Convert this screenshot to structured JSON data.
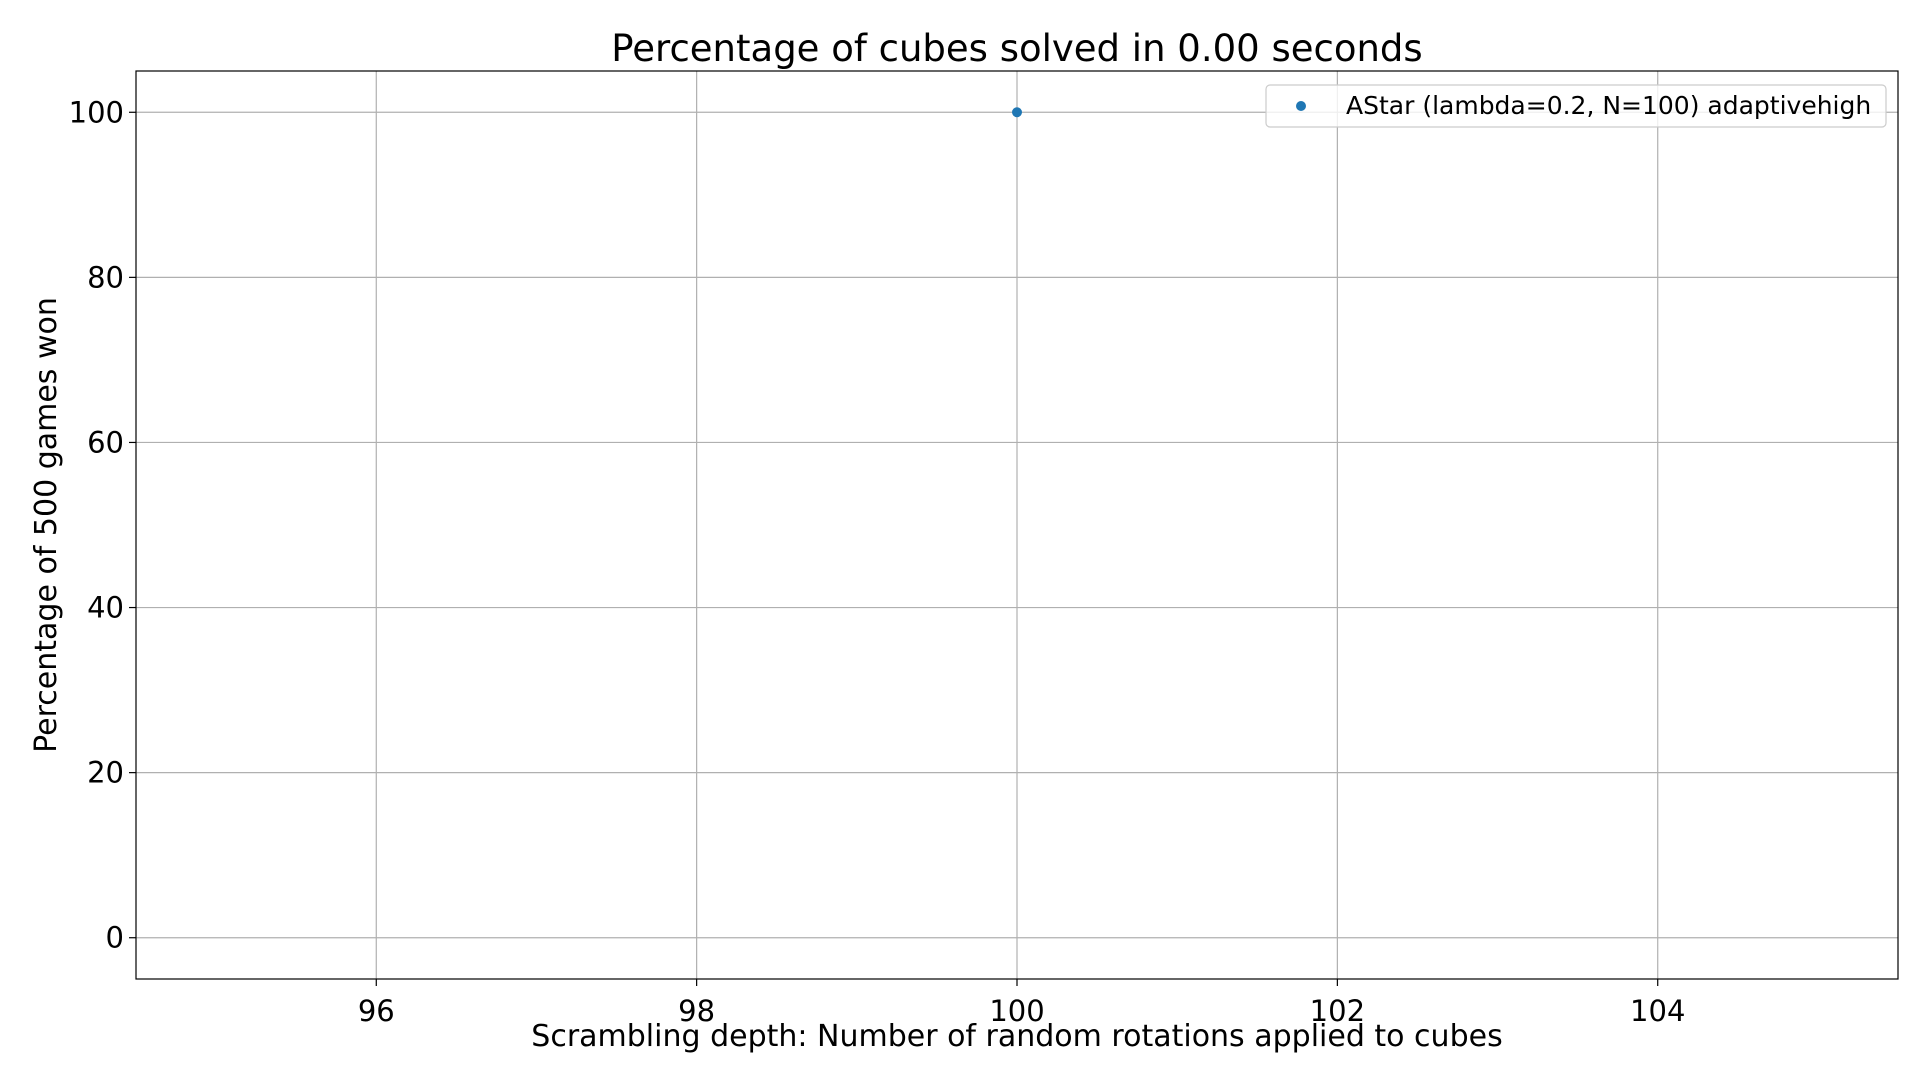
{
  "chart_data": {
    "type": "scatter",
    "title": "Percentage of cubes solved in 0.00 seconds",
    "xlabel": "Scrambling depth: Number of random rotations applied to cubes",
    "ylabel": "Percentage of 500 games won",
    "xlim": [
      94.5,
      105.5
    ],
    "ylim": [
      -5,
      105
    ],
    "xticks": [
      96,
      98,
      100,
      102,
      104
    ],
    "yticks": [
      0,
      20,
      40,
      60,
      80,
      100
    ],
    "xtick_labels": [
      "96",
      "98",
      "100",
      "102",
      "104"
    ],
    "ytick_labels": [
      "0",
      "20",
      "40",
      "60",
      "80",
      "100"
    ],
    "grid": true,
    "legend_position": "top-right",
    "series": [
      {
        "name": "AStar (lambda=0.2, N=100) adaptivehigh",
        "color": "#1f77b4",
        "x": [
          100
        ],
        "y": [
          100
        ]
      }
    ]
  }
}
